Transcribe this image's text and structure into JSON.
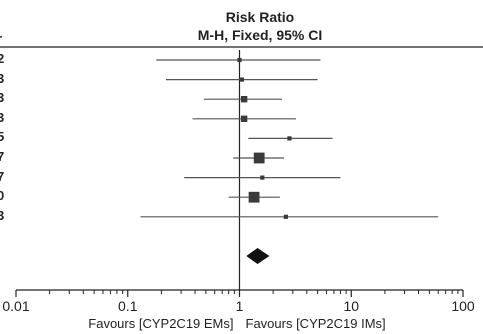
{
  "chart_data": {
    "type": "forest",
    "title": "Risk Ratio",
    "subtitle": "M-H, Fixed, 95% CI",
    "scale": "log",
    "xlim": [
      0.01,
      100
    ],
    "x_ticks": [
      "0.01",
      "0.1",
      "1",
      "10",
      "100"
    ],
    "x_tick_values": [
      0.01,
      0.1,
      1,
      10,
      100
    ],
    "favours_left": "Favours [CYP2C19 EMs]",
    "favours_right": "Favours [CYP2C19 IMs]",
    "left_labels": [
      "r",
      "2",
      "3",
      "3",
      "3",
      "5",
      "7",
      "7",
      "0",
      "3"
    ],
    "studies": [
      {
        "rr": 1.0,
        "lower": 0.18,
        "upper": 5.3,
        "weight": 1
      },
      {
        "rr": 1.05,
        "lower": 0.22,
        "upper": 5.0,
        "weight": 1
      },
      {
        "rr": 1.1,
        "lower": 0.48,
        "upper": 2.4,
        "weight": 2
      },
      {
        "rr": 1.1,
        "lower": 0.38,
        "upper": 3.2,
        "weight": 2
      },
      {
        "rr": 2.8,
        "lower": 1.2,
        "upper": 6.8,
        "weight": 1
      },
      {
        "rr": 1.5,
        "lower": 0.88,
        "upper": 2.5,
        "weight": 4
      },
      {
        "rr": 1.6,
        "lower": 0.32,
        "upper": 8.0,
        "weight": 1
      },
      {
        "rr": 1.35,
        "lower": 0.8,
        "upper": 2.3,
        "weight": 4
      },
      {
        "rr": 2.6,
        "lower": 0.13,
        "upper": 60,
        "weight": 1
      }
    ],
    "overall": {
      "rr": 1.45,
      "lower": 1.15,
      "upper": 1.85
    }
  },
  "colors": {
    "ink": "#222222",
    "line": "#555555",
    "box": "#3a3a3a"
  }
}
